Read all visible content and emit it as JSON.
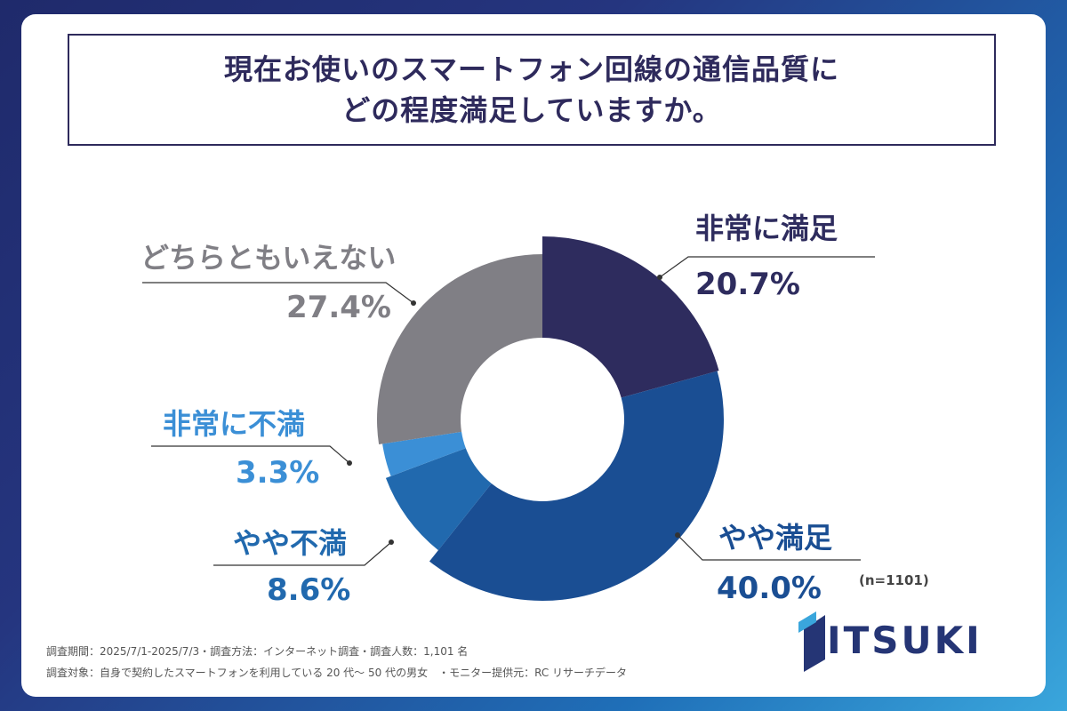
{
  "title": {
    "line1": "現在お使いのスマートフォン回線の通信品質に",
    "line2": "どの程度満足していますか。"
  },
  "chart_data": {
    "type": "pie",
    "variant": "donut",
    "start": "top, clockwise",
    "slices": [
      {
        "label": "非常に満足",
        "value": 20.7,
        "value_text": "20.7%",
        "color": "#2e2c5e"
      },
      {
        "label": "やや満足",
        "value": 40.0,
        "value_text": "40.0%",
        "color": "#1a4e93"
      },
      {
        "label": "やや不満",
        "value": 8.6,
        "value_text": "8.6%",
        "color": "#2169ae"
      },
      {
        "label": "非常に不満",
        "value": 3.3,
        "value_text": "3.3%",
        "color": "#3b8fd6"
      },
      {
        "label": "どちらともいえない",
        "value": 27.4,
        "value_text": "27.4%",
        "color": "#807f85"
      }
    ]
  },
  "sample_note": "(n=1101)",
  "footer": {
    "line1": "調査期間：2025/7/1-2025/7/3・調査方法：インターネット調査・調査人数：1,101 名",
    "line2": "調査対象：自身で契約したスマートフォンを利用している 20 代～ 50 代の男女　・モニター提供元：RC リサーチデータ"
  },
  "logo": {
    "text": "ITSUKI",
    "color": "#253575"
  }
}
